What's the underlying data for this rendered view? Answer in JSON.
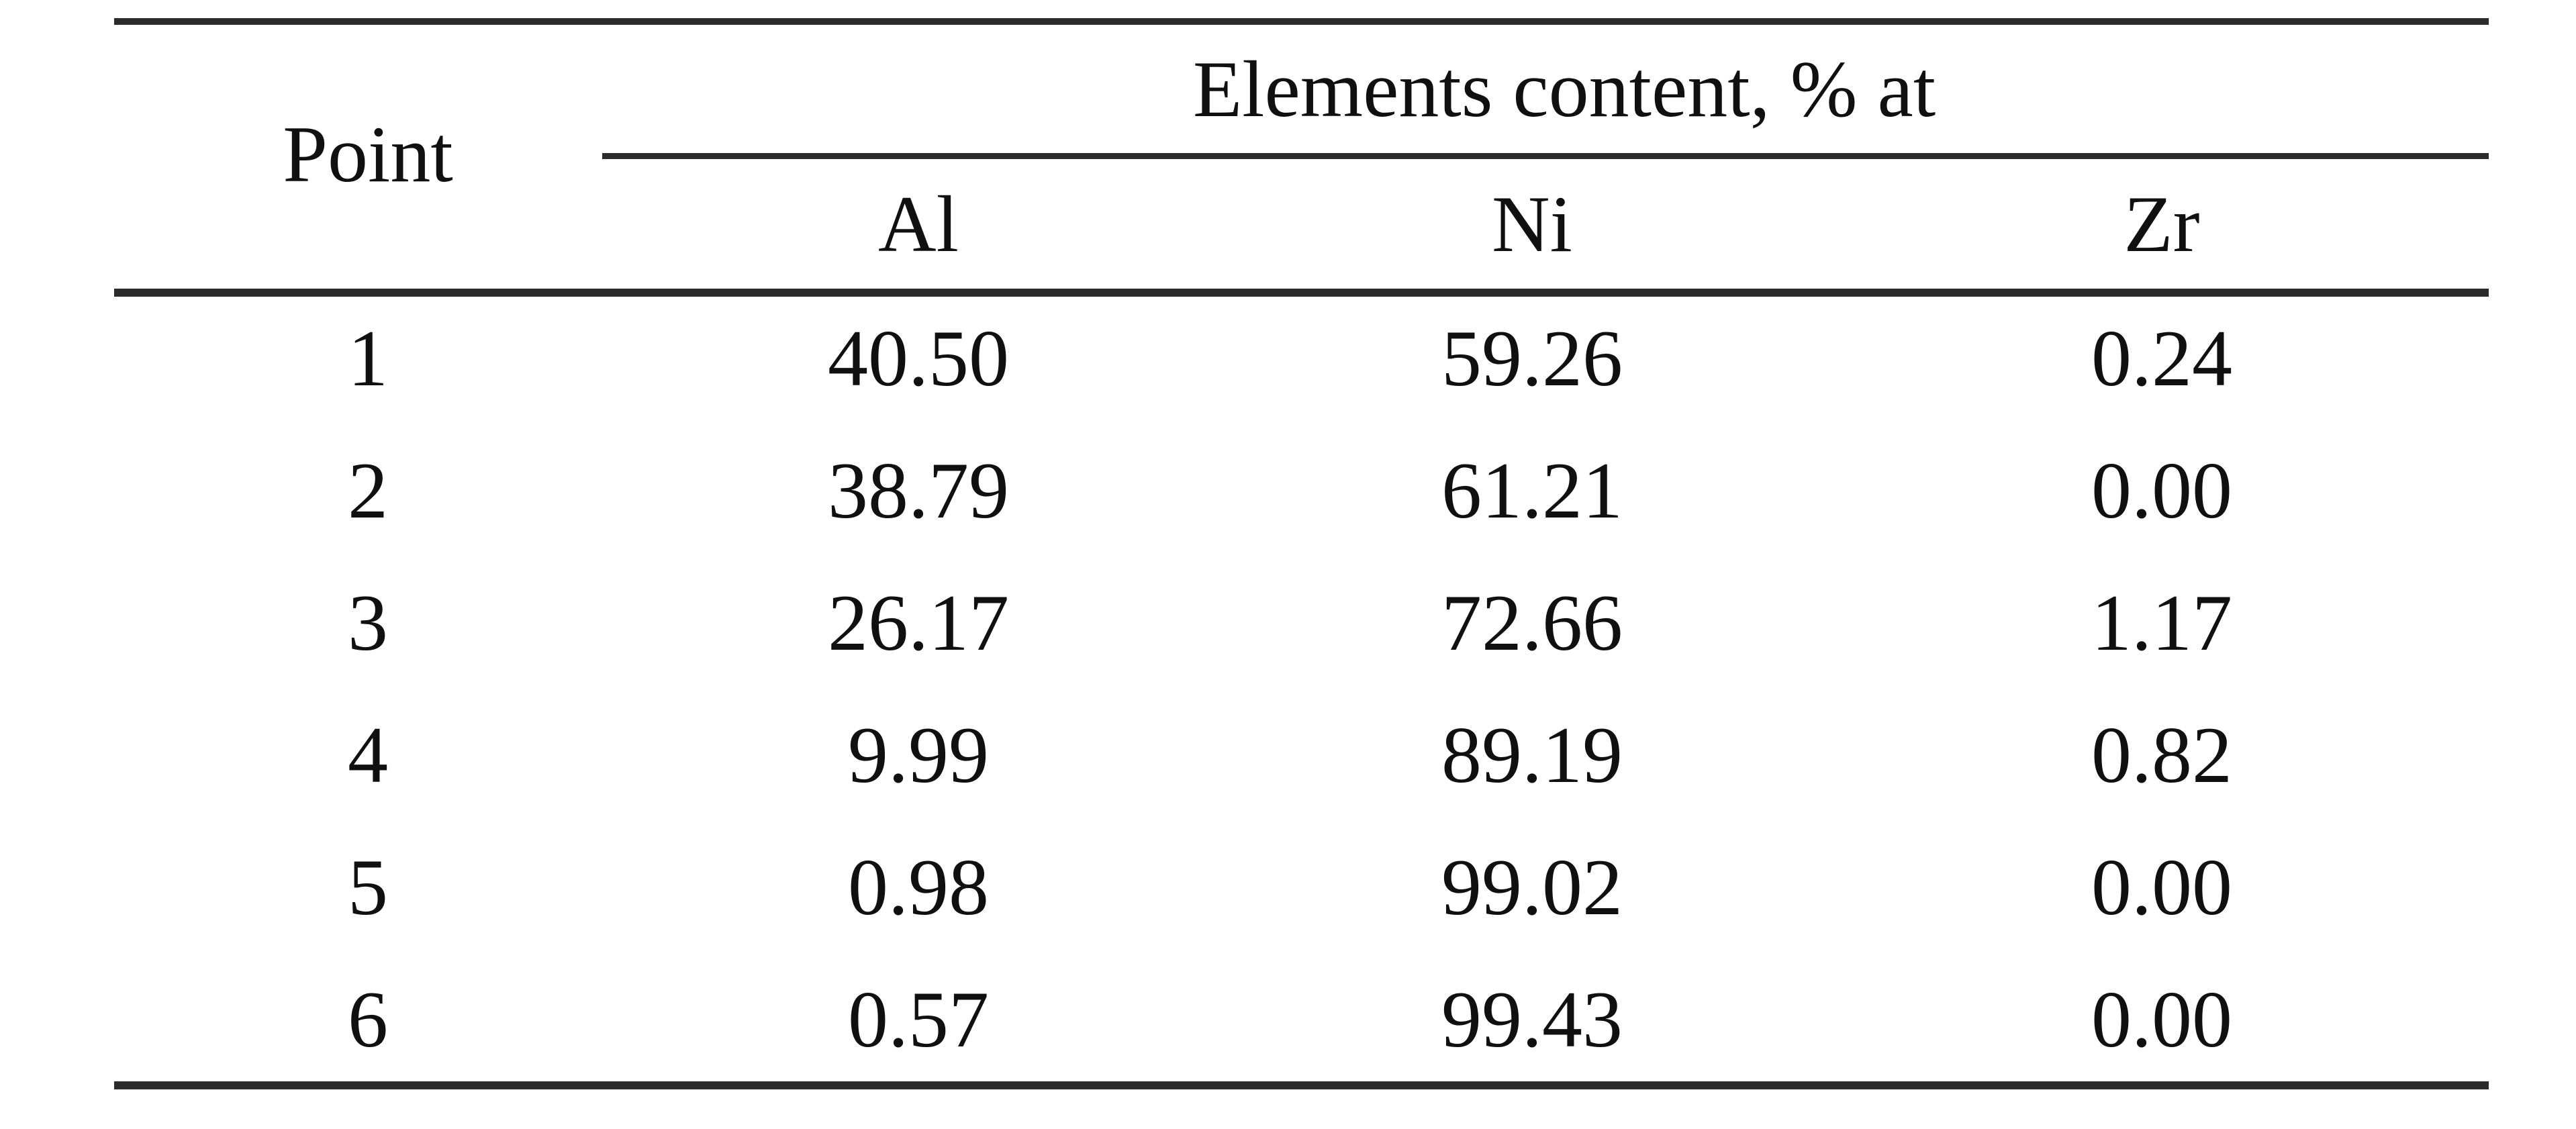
{
  "page": {
    "background": "#ffffff"
  },
  "table": {
    "point_header": "Point",
    "group_header": "Elements content, % at",
    "sub_headers": [
      "Al",
      "Ni",
      "Zr"
    ],
    "rows": [
      {
        "point": "1",
        "al": "40.50",
        "ni": "59.26",
        "zr": "0.24"
      },
      {
        "point": "2",
        "al": "38.79",
        "ni": "61.21",
        "zr": "0.00"
      },
      {
        "point": "3",
        "al": "26.17",
        "ni": "72.66",
        "zr": "1.17"
      },
      {
        "point": "4",
        "al": "9.99",
        "ni": "89.19",
        "zr": "0.82"
      },
      {
        "point": "5",
        "al": "0.98",
        "ni": "99.02",
        "zr": "0.00"
      },
      {
        "point": "6",
        "al": "0.57",
        "ni": "99.43",
        "zr": "0.00"
      }
    ],
    "colors": {
      "rule": "#2b2b2b",
      "text": "#101010",
      "background": "#ffffff"
    }
  }
}
